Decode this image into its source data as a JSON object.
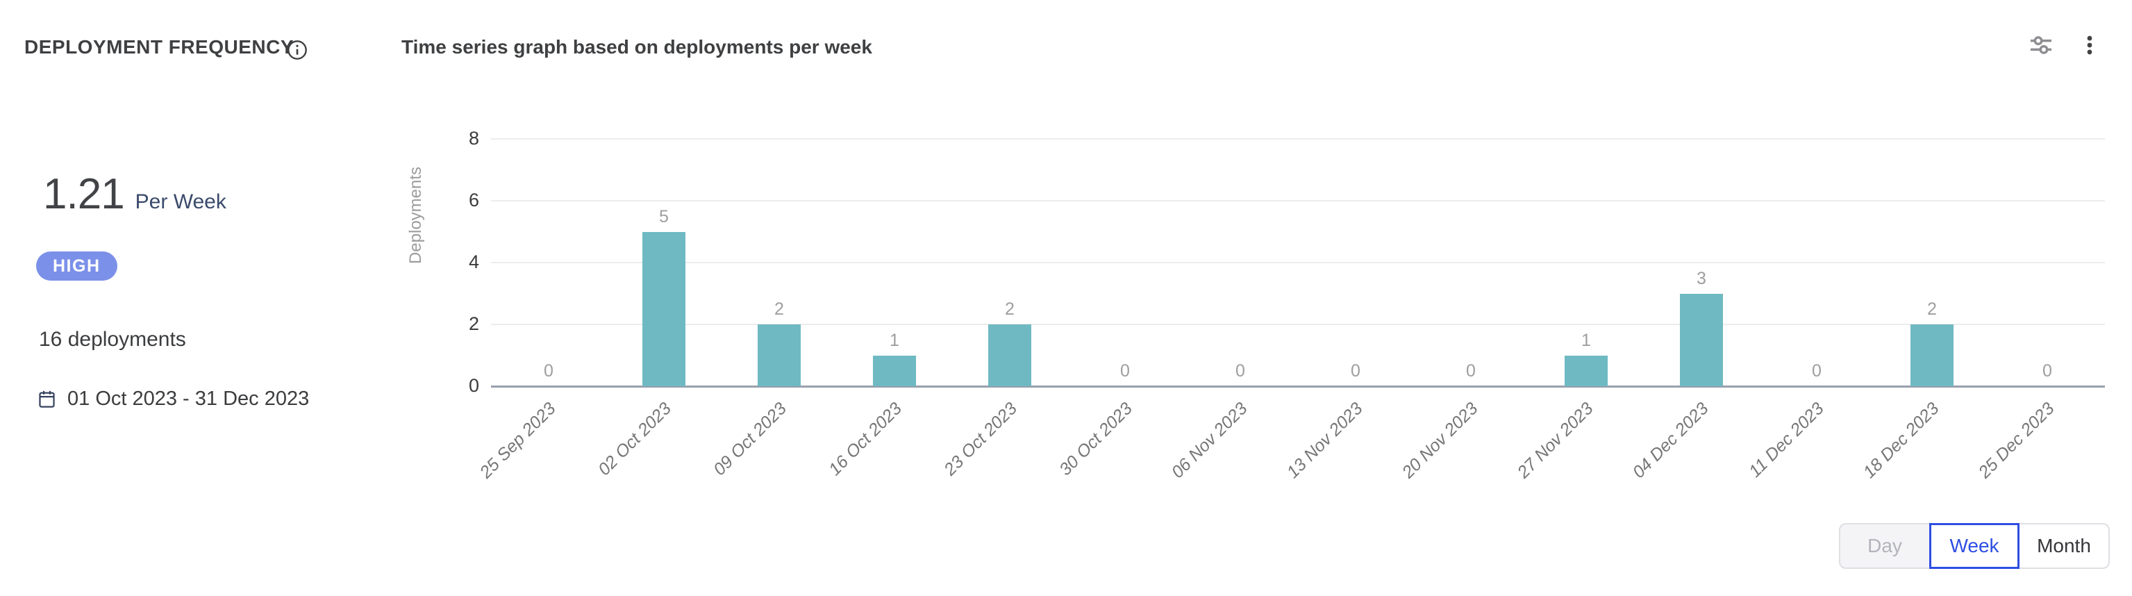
{
  "header": {
    "title": "DEPLOYMENT FREQUENCY",
    "chart_title": "Time series graph based on deployments per week"
  },
  "summary": {
    "value": "1.21",
    "unit": "Per Week",
    "badge": "HIGH",
    "deployments_total": "16 deployments",
    "date_range": "01 Oct 2023 - 31 Dec 2023"
  },
  "chart_data": {
    "type": "bar",
    "title": "Time series graph based on deployments per week",
    "ylabel": "Deployments",
    "xlabel": "",
    "categories": [
      "25 Sep 2023",
      "02 Oct 2023",
      "09 Oct 2023",
      "16 Oct 2023",
      "23 Oct 2023",
      "30 Oct 2023",
      "06 Nov 2023",
      "13 Nov 2023",
      "20 Nov 2023",
      "27 Nov 2023",
      "04 Dec 2023",
      "11 Dec 2023",
      "18 Dec 2023",
      "25 Dec 2023"
    ],
    "values": [
      0,
      5,
      2,
      1,
      2,
      0,
      0,
      0,
      0,
      1,
      3,
      0,
      2,
      0
    ],
    "ylim": [
      0,
      8
    ],
    "yticks": [
      0,
      2,
      4,
      6,
      8
    ],
    "grid": true,
    "data_labels": true,
    "legend": "none",
    "bar_color": "#6FB9C3"
  },
  "controls": {
    "granularity": [
      {
        "label": "Day",
        "state": "disabled"
      },
      {
        "label": "Week",
        "state": "selected"
      },
      {
        "label": "Month",
        "state": "default"
      }
    ]
  },
  "icons": {
    "info": "info-icon",
    "calendar": "calendar-icon",
    "filter_sliders": "sliders-icon",
    "more_options": "kebab-menu-icon"
  },
  "colors": {
    "bar": "#6FB9C3",
    "badge_bg": "#7B90E8",
    "toggle_selected": "#2E4EE2",
    "axis_label": "#9C9C9C",
    "grid_line": "#ECECEC",
    "baseline": "#98A0AC"
  }
}
